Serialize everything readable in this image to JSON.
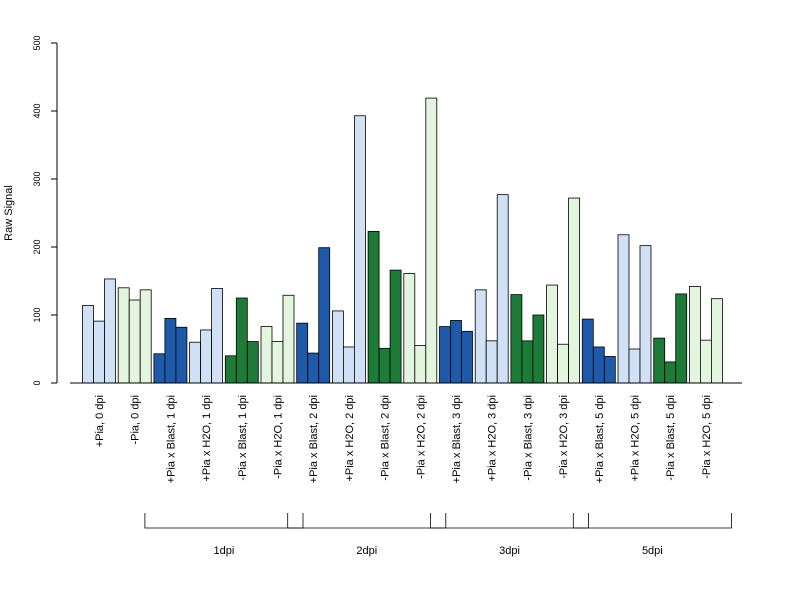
{
  "chart_data": {
    "type": "bar",
    "ylabel": "Raw Signal",
    "ylim": [
      0,
      500
    ],
    "yticks": [
      0,
      100,
      200,
      300,
      400,
      500
    ],
    "bars_per_category": 3,
    "categories": [
      "+Pia, 0 dpi",
      "-Pia, 0 dpi",
      "+Pia x Blast, 1 dpi",
      "+Pia x H2O, 1 dpi",
      "-Pia x Blast, 1 dpi",
      "-Pia x H2O, 1 dpi",
      "+Pia x Blast, 2 dpi",
      "+Pia x H2O, 2 dpi",
      "-Pia x Blast, 2 dpi",
      "-Pia x H2O, 2 dpi",
      "+Pia x Blast, 3 dpi",
      "+Pia x H2O, 3 dpi",
      "-Pia x Blast, 3 dpi",
      "-Pia x H2O, 3 dpi",
      "+Pia x Blast, 5 dpi",
      "+Pia x H2O, 5 dpi",
      "-Pia x Blast, 5 dpi",
      "-Pia x H2O, 5 dpi"
    ],
    "values": [
      [
        114,
        91,
        153
      ],
      [
        140,
        122,
        137
      ],
      [
        43,
        95,
        82
      ],
      [
        60,
        78,
        139
      ],
      [
        40,
        125,
        61
      ],
      [
        83,
        61,
        129
      ],
      [
        88,
        44,
        199
      ],
      [
        106,
        53,
        393
      ],
      [
        223,
        51,
        166
      ],
      [
        161,
        55,
        419
      ],
      [
        83,
        92,
        76
      ],
      [
        137,
        62,
        277
      ],
      [
        130,
        62,
        100
      ],
      [
        144,
        57,
        272
      ],
      [
        94,
        53,
        39
      ],
      [
        218,
        50,
        202
      ],
      [
        66,
        31,
        131
      ],
      [
        142,
        63,
        124
      ]
    ],
    "category_colors": [
      "#d0e1f5",
      "#e3f5de",
      "#1f5aaa",
      "#d0e1f5",
      "#1e7b37",
      "#e3f5de",
      "#1f5aaa",
      "#d0e1f5",
      "#1e7b37",
      "#e3f5de",
      "#1f5aaa",
      "#d0e1f5",
      "#1e7b37",
      "#e3f5de",
      "#1f5aaa",
      "#d0e1f5",
      "#1e7b37",
      "#e3f5de"
    ],
    "groups": [
      {
        "label": "1dpi",
        "first_category": 2,
        "last_category": 5
      },
      {
        "label": "2dpi",
        "first_category": 6,
        "last_category": 9
      },
      {
        "label": "3dpi",
        "first_category": 10,
        "last_category": 13
      },
      {
        "label": "5dpi",
        "first_category": 14,
        "last_category": 17
      }
    ],
    "grid": false,
    "legend": "none"
  }
}
